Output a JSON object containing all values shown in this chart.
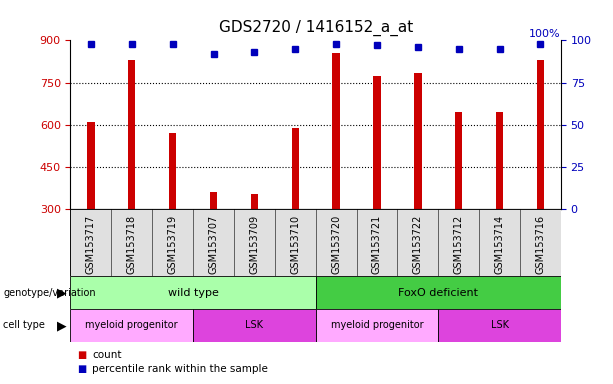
{
  "title": "GDS2720 / 1416152_a_at",
  "samples": [
    "GSM153717",
    "GSM153718",
    "GSM153719",
    "GSM153707",
    "GSM153709",
    "GSM153710",
    "GSM153720",
    "GSM153721",
    "GSM153722",
    "GSM153712",
    "GSM153714",
    "GSM153716"
  ],
  "counts": [
    610,
    830,
    570,
    360,
    355,
    590,
    855,
    775,
    785,
    645,
    645,
    830
  ],
  "percentile_ranks": [
    98,
    98,
    98,
    92,
    93,
    95,
    98,
    97,
    96,
    95,
    95,
    98
  ],
  "ylim_left": [
    300,
    900
  ],
  "ylim_right": [
    0,
    100
  ],
  "yticks_left": [
    300,
    450,
    600,
    750,
    900
  ],
  "yticks_right": [
    0,
    25,
    50,
    75,
    100
  ],
  "bar_color": "#cc0000",
  "dot_color": "#0000bb",
  "grid_color": "#000000",
  "background_color": "#ffffff",
  "genotype_groups": [
    {
      "label": "wild type",
      "start": 0,
      "end": 6,
      "color": "#aaffaa"
    },
    {
      "label": "FoxO deficient",
      "start": 6,
      "end": 12,
      "color": "#44cc44"
    }
  ],
  "celltype_groups": [
    {
      "label": "myeloid progenitor",
      "start": 0,
      "end": 3,
      "color": "#ffaaff"
    },
    {
      "label": "LSK",
      "start": 3,
      "end": 6,
      "color": "#dd44dd"
    },
    {
      "label": "myeloid progenitor",
      "start": 6,
      "end": 9,
      "color": "#ffaaff"
    },
    {
      "label": "LSK",
      "start": 9,
      "end": 12,
      "color": "#dd44dd"
    }
  ],
  "legend_count_color": "#cc0000",
  "legend_dot_color": "#0000bb",
  "left_label_color": "#cc0000",
  "right_label_color": "#0000bb",
  "title_fontsize": 11,
  "tick_fontsize": 8,
  "sample_fontsize": 7,
  "annot_fontsize": 8,
  "label_fontsize": 8
}
